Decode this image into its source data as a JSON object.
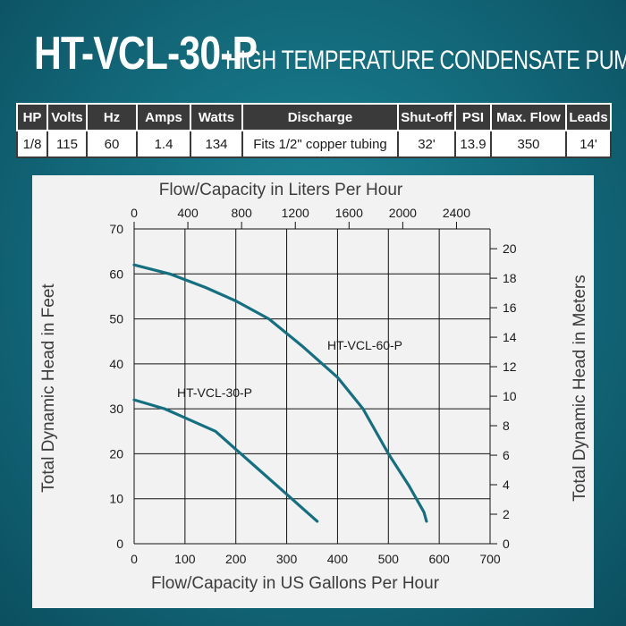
{
  "header": {
    "model": "HT-VCL-30-P",
    "description": "HIGH TEMPERATURE CONDENSATE PUMP"
  },
  "specs": {
    "columns": [
      "HP",
      "Volts",
      "Hz",
      "Amps",
      "Watts",
      "Discharge",
      "Shut-off",
      "PSI",
      "Max. Flow",
      "Leads"
    ],
    "row": [
      "1/8",
      "115",
      "60",
      "1.4",
      "134",
      "Fits 1/2\" copper tubing",
      "32'",
      "13.9",
      "350",
      "14'"
    ]
  },
  "colors": {
    "background": "#146f80",
    "header_cell": "#3a3a3a",
    "curve": "#146f80",
    "grid": "#111111"
  },
  "chart_data": {
    "type": "line",
    "xlabel": "Flow/Capacity in US Gallons Per Hour",
    "ylabel": "Total Dynamic Head in Feet",
    "x2label": "Flow/Capacity in Liters Per Hour",
    "y2label": "Total Dynamic Head in Meters",
    "xlim": [
      0,
      700
    ],
    "ylim": [
      0,
      70
    ],
    "x2lim": [
      0,
      2650
    ],
    "y2lim": [
      0,
      21.34
    ],
    "xticks": [
      0,
      100,
      200,
      300,
      400,
      500,
      600,
      700
    ],
    "yticks": [
      0,
      10,
      20,
      30,
      40,
      50,
      60,
      70
    ],
    "x2ticks": [
      0,
      400,
      800,
      1200,
      1600,
      2000,
      2400
    ],
    "y2ticks": [
      0,
      2,
      4,
      6,
      8,
      10,
      12,
      14,
      16,
      18,
      20
    ],
    "grid": true,
    "series": [
      {
        "name": "HT-VCL-30-P",
        "x": [
          0,
          60,
          100,
          160,
          200,
          250,
          300,
          330,
          360
        ],
        "y": [
          32,
          30,
          28,
          25,
          21,
          16,
          11,
          8,
          5
        ]
      },
      {
        "name": "HT-VCL-60-P",
        "x": [
          0,
          70,
          140,
          200,
          265,
          330,
          400,
          450,
          500,
          540,
          560,
          570,
          575
        ],
        "y": [
          62,
          60,
          57,
          54,
          50,
          44,
          37,
          30,
          20,
          13,
          9,
          7,
          5
        ]
      }
    ]
  }
}
